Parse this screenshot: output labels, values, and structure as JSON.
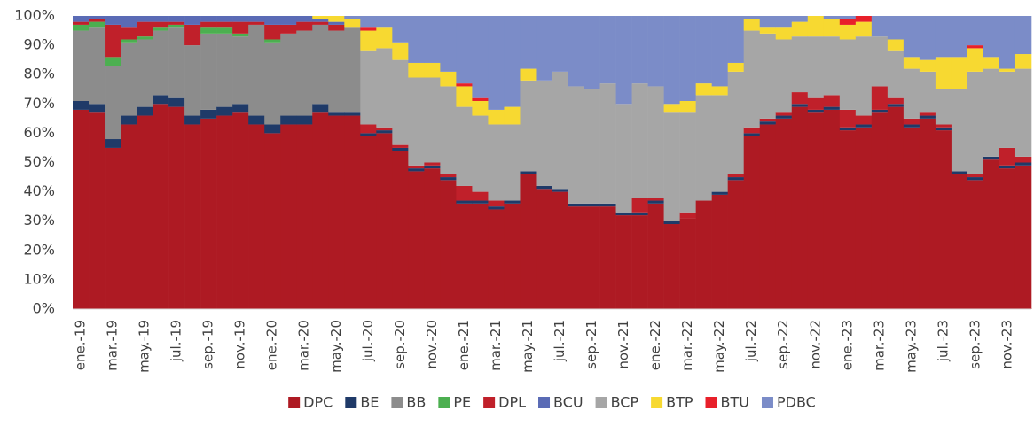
{
  "chart_data": {
    "type": "stacked-bar",
    "categories": [
      "ene.-19",
      null,
      "mar.-19",
      null,
      "may.-19",
      null,
      "jul.-19",
      null,
      "sep.-19",
      null,
      "nov.-19",
      null,
      "ene.-20",
      null,
      "mar.-20",
      null,
      "may.-20",
      null,
      "jul.-20",
      null,
      "sep.-20",
      null,
      "nov.-20",
      null,
      "ene.-21",
      null,
      "mar.-21",
      null,
      "may.-21",
      null,
      "jul.-21",
      null,
      "sep.-21",
      null,
      "nov.-21",
      null,
      "ene.-22",
      null,
      "mar.-22",
      null,
      "may.-22",
      null,
      "jul.-22",
      null,
      "sep.-22",
      null,
      "nov.-22",
      null,
      "ene.-23",
      null,
      "mar.-23",
      null,
      "may.-23",
      null,
      "jul.-23",
      null,
      "sep.-23",
      null,
      "nov.-23",
      null
    ],
    "series": [
      {
        "name": "DPC",
        "color": "#ae1a23",
        "values": [
          68,
          67,
          55,
          63,
          66,
          70,
          69,
          63,
          65,
          66,
          67,
          63,
          60,
          63,
          63,
          67,
          66,
          66,
          59,
          60,
          54,
          47,
          48,
          44,
          36,
          36,
          34,
          36,
          46,
          41,
          40,
          35,
          35,
          35,
          32,
          32,
          36,
          29,
          31,
          37,
          39,
          44,
          59,
          63,
          65,
          69,
          67,
          68,
          61,
          62,
          67,
          69,
          62,
          65,
          61,
          46,
          44,
          51,
          48,
          49
        ]
      },
      {
        "name": "BE",
        "color": "#1f3a68",
        "values": [
          3,
          3,
          3,
          3,
          3,
          3,
          3,
          3,
          3,
          3,
          3,
          3,
          3,
          3,
          3,
          3,
          1,
          1,
          1,
          1,
          1,
          1,
          1,
          1,
          1,
          1,
          1,
          1,
          1,
          1,
          1,
          1,
          1,
          1,
          1,
          1,
          1,
          1,
          0,
          0,
          1,
          1,
          1,
          1,
          1,
          1,
          1,
          1,
          1,
          1,
          1,
          1,
          1,
          1,
          1,
          1,
          1,
          1,
          1,
          1
        ]
      },
      {
        "name": "BB",
        "color": "#8c8c8c",
        "values": [
          24,
          26,
          25,
          25,
          23,
          22,
          24,
          24,
          26,
          25,
          23,
          31,
          28,
          28,
          29,
          27,
          28,
          29,
          0,
          0,
          0,
          0,
          0,
          0,
          0,
          0,
          0,
          0,
          0,
          0,
          0,
          0,
          0,
          0,
          0,
          0,
          0,
          0,
          0,
          0,
          0,
          0,
          0,
          0,
          0,
          0,
          0,
          0,
          0,
          0,
          0,
          0,
          0,
          0,
          0,
          0,
          0,
          0,
          0,
          0
        ]
      },
      {
        "name": "PE",
        "color": "#4caf50",
        "values": [
          2,
          2,
          3,
          1,
          1,
          1,
          1,
          0,
          2,
          2,
          1,
          0,
          1,
          0,
          0,
          0,
          0,
          0,
          0,
          0,
          0,
          0,
          0,
          0,
          0,
          0,
          0,
          0,
          0,
          0,
          0,
          0,
          0,
          0,
          0,
          0,
          0,
          0,
          0,
          0,
          0,
          0,
          0,
          0,
          0,
          0,
          0,
          0,
          0,
          0,
          0,
          0,
          0,
          0,
          0,
          0,
          0,
          0,
          0,
          0
        ]
      },
      {
        "name": "DPL",
        "color": "#c0202a",
        "values": [
          1,
          1,
          11,
          4,
          5,
          2,
          1,
          7,
          2,
          2,
          4,
          1,
          5,
          3,
          3,
          1,
          2,
          0,
          3,
          1,
          1,
          1,
          1,
          1,
          5,
          3,
          2,
          0,
          0,
          0,
          0,
          0,
          0,
          0,
          0,
          5,
          1,
          0,
          2,
          0,
          0,
          1,
          2,
          1,
          1,
          4,
          4,
          4,
          6,
          3,
          8,
          2,
          2,
          1,
          1,
          0,
          1,
          0,
          6,
          2
        ]
      },
      {
        "name": "BCU",
        "color": "#5a6bb5",
        "values": [
          2,
          1,
          3,
          4,
          2,
          2,
          2,
          3,
          2,
          2,
          2,
          2,
          3,
          3,
          2,
          1,
          1,
          0,
          0,
          0,
          0,
          0,
          0,
          0,
          0,
          0,
          0,
          0,
          0,
          0,
          0,
          0,
          0,
          0,
          0,
          0,
          0,
          0,
          0,
          0,
          0,
          0,
          0,
          0,
          0,
          0,
          0,
          0,
          0,
          0,
          0,
          0,
          0,
          0,
          0,
          0,
          0,
          0,
          0,
          0
        ]
      },
      {
        "name": "BCP",
        "color": "#a6a6a6",
        "values": [
          0,
          0,
          0,
          0,
          0,
          0,
          0,
          0,
          0,
          0,
          0,
          0,
          0,
          0,
          0,
          0,
          0,
          0,
          25,
          27,
          29,
          30,
          29,
          30,
          27,
          26,
          26,
          26,
          31,
          36,
          40,
          40,
          39,
          41,
          37,
          39,
          38,
          37,
          34,
          36,
          33,
          35,
          33,
          29,
          25,
          19,
          21,
          20,
          24,
          27,
          17,
          16,
          17,
          14,
          12,
          28,
          35,
          30,
          26,
          30
        ]
      },
      {
        "name": "BTP",
        "color": "#f7d931",
        "values": [
          0,
          0,
          0,
          0,
          0,
          0,
          0,
          0,
          0,
          0,
          0,
          0,
          0,
          0,
          0,
          1,
          2,
          3,
          7,
          7,
          6,
          5,
          5,
          5,
          7,
          5,
          5,
          6,
          4,
          0,
          0,
          0,
          0,
          0,
          0,
          0,
          0,
          3,
          4,
          4,
          3,
          3,
          4,
          2,
          4,
          5,
          7,
          6,
          5,
          5,
          0,
          4,
          4,
          4,
          11,
          11,
          8,
          4,
          1,
          5
        ]
      },
      {
        "name": "BTU",
        "color": "#e8202a",
        "values": [
          0,
          0,
          0,
          0,
          0,
          0,
          0,
          0,
          0,
          0,
          0,
          0,
          0,
          0,
          0,
          0,
          0,
          0,
          1,
          0,
          0,
          0,
          0,
          0,
          1,
          1,
          0,
          0,
          0,
          0,
          0,
          0,
          0,
          0,
          0,
          0,
          0,
          0,
          0,
          0,
          0,
          0,
          0,
          0,
          0,
          0,
          0,
          0,
          2,
          2,
          0,
          0,
          0,
          0,
          0,
          0,
          1,
          0,
          0,
          0
        ]
      },
      {
        "name": "PDBC",
        "color": "#7b8cc8",
        "values": [
          0,
          0,
          0,
          0,
          0,
          0,
          0,
          0,
          0,
          0,
          0,
          0,
          0,
          0,
          0,
          0,
          0,
          1,
          4,
          4,
          9,
          16,
          16,
          19,
          23,
          28,
          32,
          31,
          18,
          22,
          19,
          24,
          25,
          23,
          30,
          23,
          24,
          30,
          29,
          23,
          24,
          16,
          1,
          4,
          4,
          2,
          0,
          1,
          1,
          0,
          7,
          8,
          14,
          15,
          14,
          14,
          10,
          14,
          18,
          13
        ]
      }
    ],
    "ylim": [
      0,
      100
    ],
    "yticks": [
      {
        "value": 0,
        "label": "0%"
      },
      {
        "value": 10,
        "label": "10%"
      },
      {
        "value": 20,
        "label": "20%"
      },
      {
        "value": 30,
        "label": "30%"
      },
      {
        "value": 40,
        "label": "40%"
      },
      {
        "value": 50,
        "label": "50%"
      },
      {
        "value": 60,
        "label": "60%"
      },
      {
        "value": 70,
        "label": "70%"
      },
      {
        "value": 80,
        "label": "80%"
      },
      {
        "value": 90,
        "label": "90%"
      },
      {
        "value": 100,
        "label": "100%"
      }
    ],
    "legend": "bottom"
  }
}
